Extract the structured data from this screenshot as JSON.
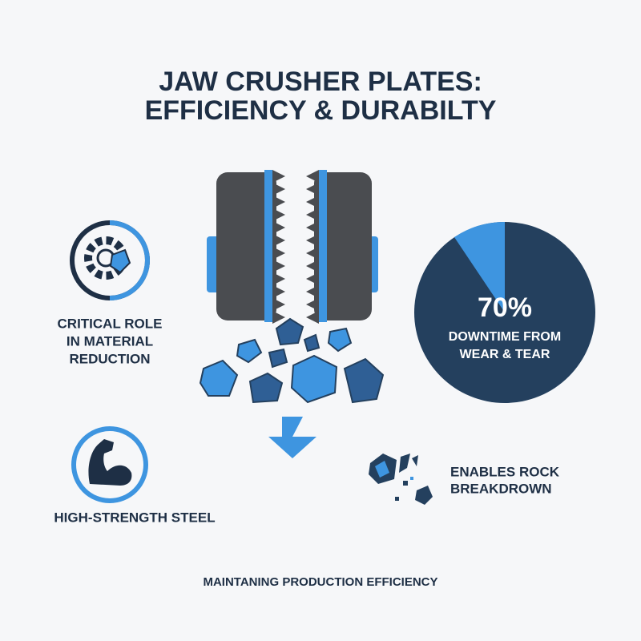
{
  "header": {
    "title_lines": [
      "JAW CRUSHER PLATES:",
      "EFFICIENCY & DURABILTY"
    ]
  },
  "features": [
    {
      "lines": [
        "CRITICAL ROLE",
        "IN MATERIAL",
        "REDUCTION"
      ]
    },
    {
      "lines": [
        "HIGH-STRENGTH STEEL"
      ]
    },
    {
      "lines": [
        "ENABLES ROCK",
        "BREAKDROWN"
      ]
    }
  ],
  "stat": {
    "value": "70%",
    "lines": [
      "DOWNTIME FROM",
      "WEAR & TEAR"
    ]
  },
  "footer": "MAINTANING PRODUCTION EFFICIENCY"
}
